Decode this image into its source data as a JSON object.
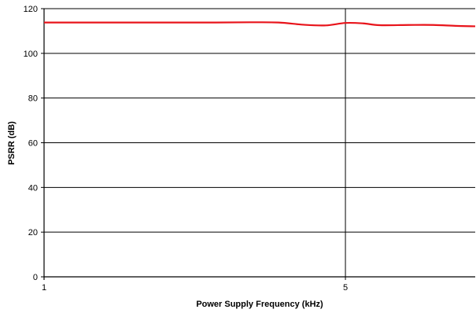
{
  "chart_data": {
    "type": "line",
    "title": "",
    "xlabel": "Power Supply Frequency (kHz)",
    "ylabel": "PSRR (dB)",
    "x_scale": "log",
    "xlim": [
      1,
      10
    ],
    "ylim": [
      0,
      120
    ],
    "y_ticks": [
      0,
      20,
      40,
      60,
      80,
      100,
      120
    ],
    "x_ticks": [
      {
        "value": 1,
        "label": "1"
      },
      {
        "value": 5,
        "label": "5"
      }
    ],
    "x_gridlines": [
      5
    ],
    "grid": {
      "horizontal": true,
      "vertical": "at 5 only"
    },
    "legend": "none",
    "series": [
      {
        "color": "#e8141b",
        "x": [
          1,
          1.5,
          2,
          2.5,
          3,
          3.5,
          4,
          4.5,
          5,
          5.5,
          6,
          7,
          8,
          9,
          10
        ],
        "y": [
          113.8,
          113.8,
          113.8,
          113.8,
          113.9,
          113.8,
          112.8,
          112.5,
          113.6,
          113.4,
          112.6,
          112.7,
          112.7,
          112.3,
          112.1
        ]
      }
    ]
  }
}
